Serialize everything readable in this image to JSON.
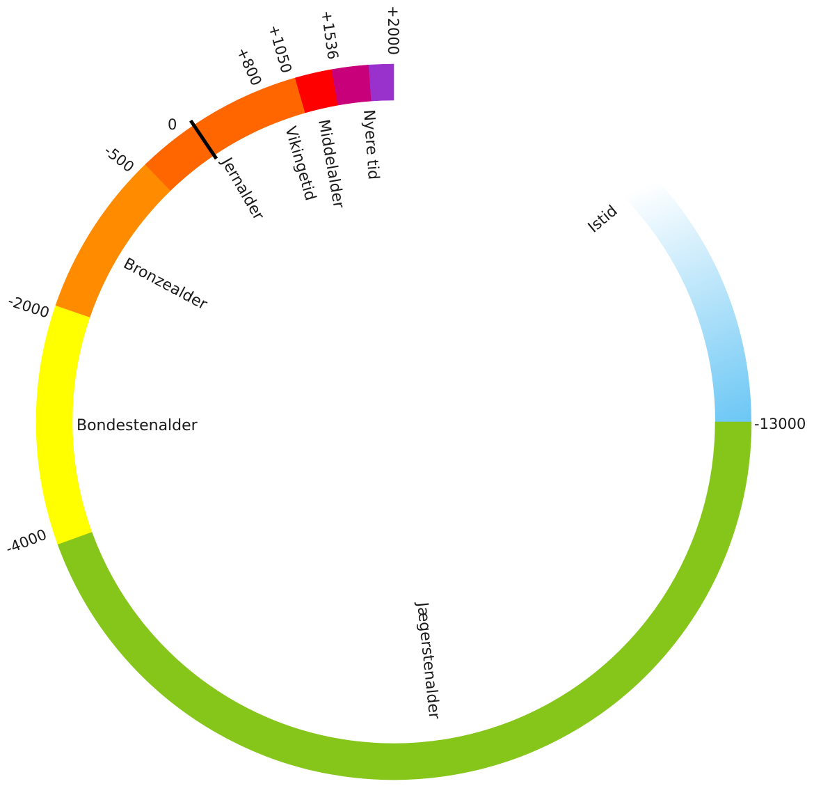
{
  "diagram": {
    "type": "circular-timeline",
    "periods": [
      {
        "id": "jaegerstenalder",
        "label": "Jægerstenalder",
        "start": -13000,
        "end": -4000,
        "color": "#86c61b"
      },
      {
        "id": "bondestenalder",
        "label": "Bondestenalder",
        "start": -4000,
        "end": -2000,
        "color": "#ffff00"
      },
      {
        "id": "bronzealder",
        "label": "Bronzealder",
        "start": -2000,
        "end": -500,
        "color": "#ff8c00"
      },
      {
        "id": "jernalder",
        "label": "Jernalder",
        "start": -500,
        "end": 800,
        "color": "#ff6600"
      },
      {
        "id": "vikingetid",
        "label": "Vikingetid",
        "start": 800,
        "end": 1050,
        "color": "#ff0000"
      },
      {
        "id": "middelalder",
        "label": "Middelalder",
        "start": 1050,
        "end": 1536,
        "color": "#c8007a"
      },
      {
        "id": "nyere-tid",
        "label": "Nyere tid",
        "start": 1536,
        "end": 2000,
        "color": "#9932cc"
      }
    ],
    "ice_age": {
      "label": "Istid",
      "color_start": "#6ec8f5",
      "color_end": "#ffffff"
    },
    "ticks": [
      {
        "value": -13000,
        "label": "-13000"
      },
      {
        "value": -4000,
        "label": "-4000"
      },
      {
        "value": -2000,
        "label": "-2000"
      },
      {
        "value": -500,
        "label": "-500"
      },
      {
        "value": 0,
        "label": "0"
      },
      {
        "value": 800,
        "label": "+800"
      },
      {
        "value": 1050,
        "label": "+1050"
      },
      {
        "value": 1536,
        "label": "+1536"
      },
      {
        "value": 2000,
        "label": "+2000"
      }
    ],
    "zero_marker_color": "#000000"
  }
}
